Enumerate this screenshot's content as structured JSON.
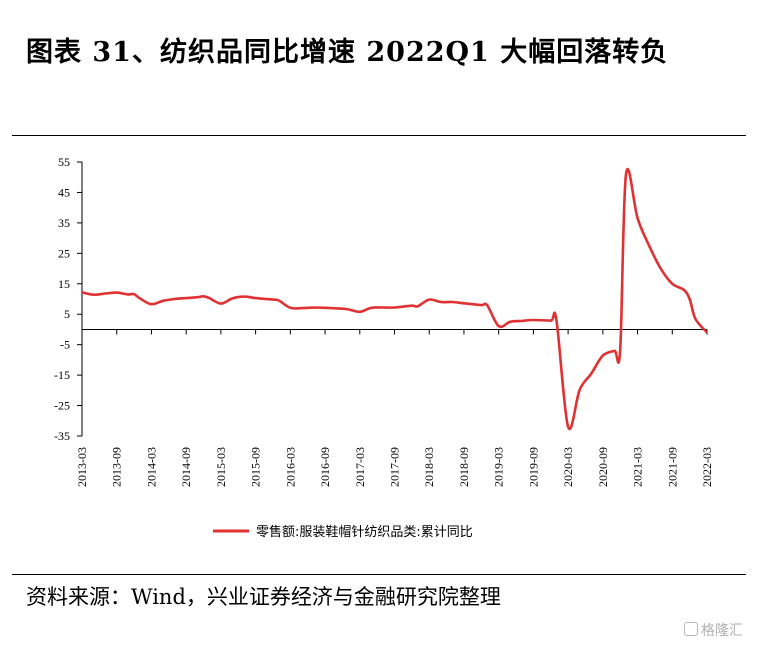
{
  "title": "图表 31、纺织品同比增速 2022Q1 大幅回落转负",
  "source": "资料来源：Wind，兴业证券经济与金融研究院整理",
  "watermark": "格隆汇",
  "chart_data": {
    "type": "line",
    "ylim": [
      -35,
      55
    ],
    "yticks": [
      55,
      45,
      35,
      25,
      15,
      5,
      -5,
      -15,
      -25,
      -35
    ],
    "xlim": [
      "2013-03",
      "2022-03"
    ],
    "xticks": [
      "2013-03",
      "2013-09",
      "2014-03",
      "2014-09",
      "2015-03",
      "2015-09",
      "2016-03",
      "2016-09",
      "2017-03",
      "2017-09",
      "2018-03",
      "2018-09",
      "2019-03",
      "2019-09",
      "2020-03",
      "2020-09",
      "2021-03",
      "2021-09",
      "2022-03"
    ],
    "grid": false,
    "legend": "bottom-center",
    "line_color": "#e03232",
    "series": [
      {
        "name": "零售额:服装鞋帽针纺织品类:累计同比",
        "x": [
          "2013-03",
          "2013-05",
          "2013-07",
          "2013-09",
          "2013-10",
          "2013-11",
          "2013-12",
          "2014-01",
          "2014-03",
          "2014-05",
          "2014-07",
          "2014-09",
          "2014-11",
          "2014-12",
          "2015-01",
          "2015-03",
          "2015-05",
          "2015-07",
          "2015-09",
          "2015-12",
          "2016-01",
          "2016-03",
          "2016-05",
          "2016-07",
          "2016-09",
          "2016-12",
          "2017-01",
          "2017-03",
          "2017-05",
          "2017-07",
          "2017-09",
          "2017-12",
          "2018-01",
          "2018-03",
          "2018-05",
          "2018-07",
          "2018-09",
          "2018-12",
          "2019-01",
          "2019-03",
          "2019-05",
          "2019-07",
          "2019-09",
          "2019-12",
          "2020-01",
          "2020-03",
          "2020-05",
          "2020-07",
          "2020-09",
          "2020-11",
          "2020-12",
          "2021-01",
          "2021-03",
          "2021-05",
          "2021-07",
          "2021-09",
          "2021-11",
          "2021-12",
          "2022-01",
          "2022-03"
        ],
        "values": [
          12.2,
          11.4,
          11.8,
          12.1,
          11.8,
          11.5,
          11.6,
          10.2,
          8.3,
          9.4,
          10.0,
          10.3,
          10.6,
          10.9,
          10.3,
          8.5,
          10.2,
          10.8,
          10.3,
          9.8,
          9.5,
          7.1,
          7.0,
          7.2,
          7.1,
          6.8,
          6.6,
          5.8,
          7.1,
          7.2,
          7.2,
          7.8,
          7.6,
          9.8,
          9.0,
          9.0,
          8.6,
          8.0,
          8.0,
          1.1,
          2.5,
          2.8,
          3.1,
          2.9,
          2.9,
          -32.0,
          -19.8,
          -14.5,
          -8.6,
          -7.0,
          -6.6,
          51.0,
          36.5,
          27.5,
          20.0,
          15.0,
          13.0,
          10.0,
          3.5,
          -1.0
        ]
      }
    ]
  }
}
